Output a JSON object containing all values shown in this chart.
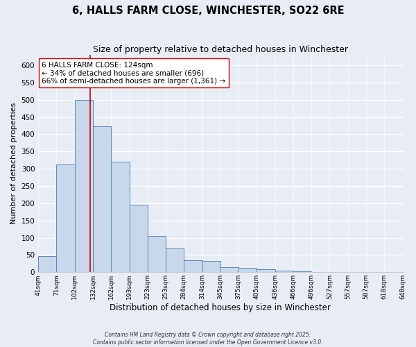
{
  "title": "6, HALLS FARM CLOSE, WINCHESTER, SO22 6RE",
  "subtitle": "Size of property relative to detached houses in Winchester",
  "xlabel": "Distribution of detached houses by size in Winchester",
  "ylabel": "Number of detached properties",
  "bar_values": [
    47,
    313,
    500,
    424,
    320,
    196,
    106,
    70,
    35,
    33,
    14,
    13,
    8,
    4,
    2,
    1,
    1,
    0,
    0,
    0
  ],
  "bar_labels": [
    "41sqm",
    "71sqm",
    "102sqm",
    "132sqm",
    "162sqm",
    "193sqm",
    "223sqm",
    "253sqm",
    "284sqm",
    "314sqm",
    "345sqm",
    "375sqm",
    "405sqm",
    "436sqm",
    "466sqm",
    "496sqm",
    "527sqm",
    "557sqm",
    "587sqm",
    "618sqm",
    "648sqm"
  ],
  "bar_color": "#c8d8ea",
  "bar_edge_color": "#5588bb",
  "vline_x": 2.85,
  "vline_color": "#cc0000",
  "annotation_text": "6 HALLS FARM CLOSE: 124sqm\n← 34% of detached houses are smaller (696)\n66% of semi-detached houses are larger (1,361) →",
  "ylim": [
    0,
    630
  ],
  "yticks": [
    0,
    50,
    100,
    150,
    200,
    250,
    300,
    350,
    400,
    450,
    500,
    550,
    600
  ],
  "bg_color": "#e8edf5",
  "plot_bg_color": "#e8edf5",
  "footer_line1": "Contains HM Land Registry data © Crown copyright and database right 2025.",
  "footer_line2": "Contains public sector information licensed under the Open Government Licence v3.0.",
  "title_fontsize": 10.5,
  "subtitle_fontsize": 9,
  "xlabel_fontsize": 8.5,
  "ylabel_fontsize": 8,
  "annotation_fontsize": 7.5,
  "tick_fontsize": 6.5,
  "ytick_fontsize": 7.5
}
